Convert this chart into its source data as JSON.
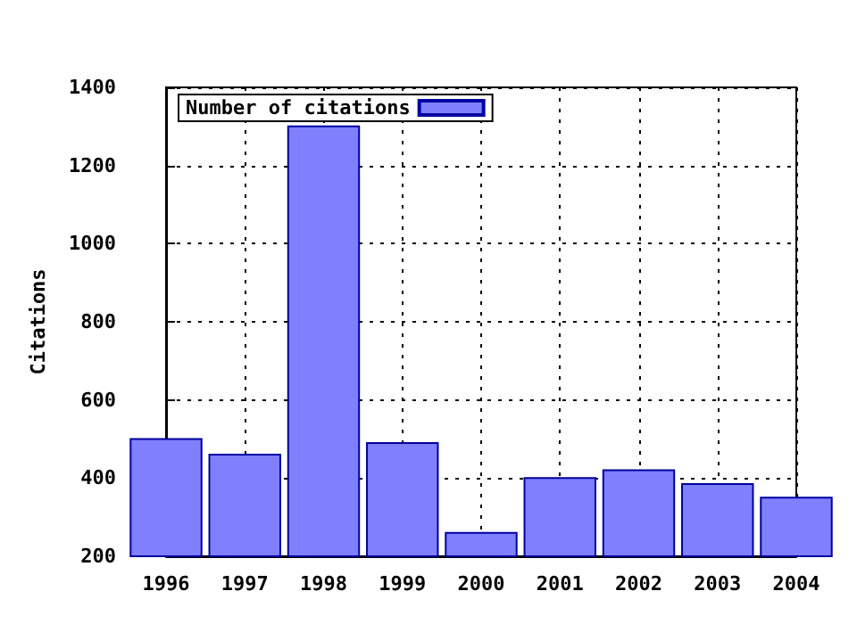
{
  "chart_data": {
    "type": "bar",
    "ylabel": "Citations",
    "x": [
      1996,
      1997,
      1998,
      1999,
      2000,
      2001,
      2002,
      2003,
      2004
    ],
    "series": [
      {
        "name": "Number of citations",
        "color": "#8080ff",
        "values": [
          500,
          460,
          1300,
          490,
          260,
          400,
          420,
          385,
          350
        ]
      }
    ],
    "xlim": [
      1996,
      2004
    ],
    "xticks": [
      1996,
      1997,
      1998,
      1999,
      2000,
      2001,
      2002,
      2003,
      2004
    ],
    "ylim": [
      200,
      1400
    ],
    "yticks": [
      200,
      400,
      600,
      800,
      1000,
      1200,
      1400
    ],
    "grid": true,
    "legend": "top left"
  }
}
